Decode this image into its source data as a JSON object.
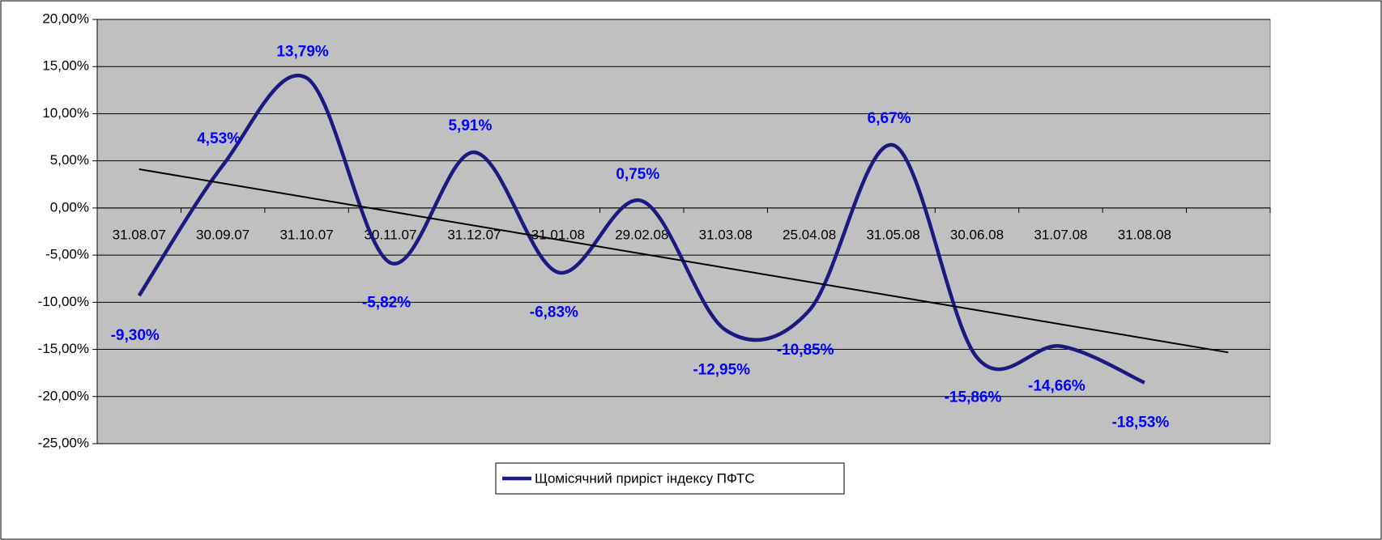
{
  "chart_data": {
    "type": "line",
    "categories": [
      "31.08.07",
      "30.09.07",
      "31.10.07",
      "30.11.07",
      "31.12.07",
      "31.01.08",
      "29.02.08",
      "31.03.08",
      "25.04.08",
      "31.05.08",
      "30.06.08",
      "31.07.08",
      "31.08.08"
    ],
    "series": [
      {
        "name": "Щомісячний приріст індексу ПФТС",
        "color": "#1a1a80",
        "values": [
          -9.3,
          4.53,
          13.79,
          -5.82,
          5.91,
          -6.83,
          0.75,
          -12.95,
          -10.85,
          6.67,
          -15.86,
          -14.66,
          -18.53
        ],
        "value_labels": [
          "-9,30%",
          "4,53%",
          "13,79%",
          "-5,82%",
          "5,91%",
          "-6,83%",
          "0,75%",
          "-12,95%",
          "-10,85%",
          "6,67%",
          "-15,86%",
          "-14,66%",
          "-18,53%"
        ],
        "label_color": "#0000ff"
      }
    ],
    "ylim": [
      -25,
      20
    ],
    "yticks": [
      {
        "value": -25,
        "label": "-25,00%"
      },
      {
        "value": -20,
        "label": "-20,00%"
      },
      {
        "value": -15,
        "label": "-15,00%"
      },
      {
        "value": -10,
        "label": "-10,00%"
      },
      {
        "value": -5,
        "label": "-5,00%"
      },
      {
        "value": 0,
        "label": "0,00%"
      },
      {
        "value": 5,
        "label": "5,00%"
      },
      {
        "value": 10,
        "label": "10,00%"
      },
      {
        "value": 15,
        "label": "15,00%"
      },
      {
        "value": 20,
        "label": "20,00%"
      }
    ],
    "grid": true,
    "smooth": true,
    "trendline": "linear",
    "legend": "bottom"
  }
}
